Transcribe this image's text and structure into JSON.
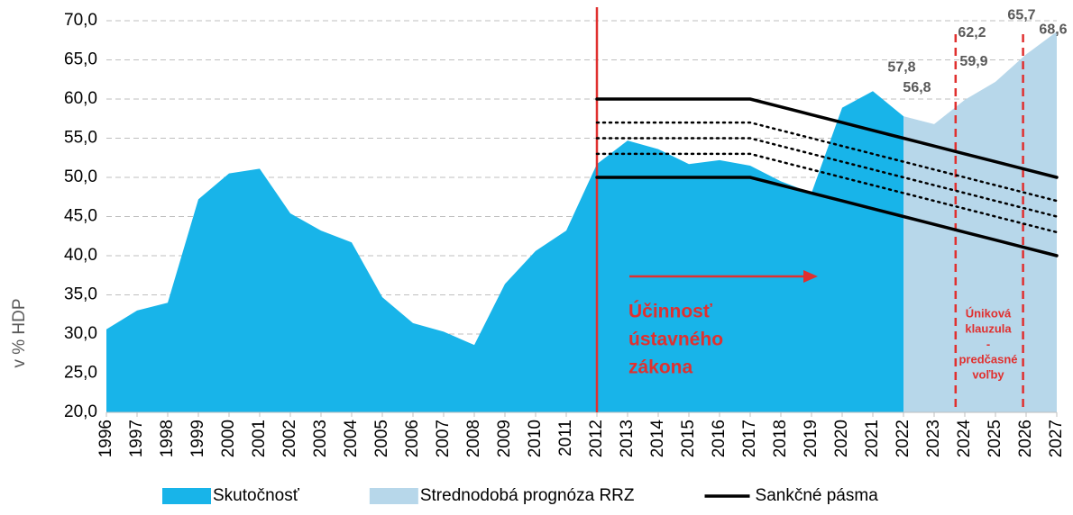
{
  "chart_data": {
    "type": "area",
    "y_label": "v % HDP",
    "x": [
      1996,
      1997,
      1998,
      1999,
      2000,
      2001,
      2002,
      2003,
      2004,
      2005,
      2006,
      2007,
      2008,
      2009,
      2010,
      2011,
      2012,
      2013,
      2014,
      2015,
      2016,
      2017,
      2018,
      2019,
      2020,
      2021,
      2022,
      2023,
      2024,
      2025,
      2026,
      2027
    ],
    "xlim": [
      1996,
      2027
    ],
    "xticks": [
      1996,
      1997,
      1998,
      1999,
      2000,
      2001,
      2002,
      2003,
      2004,
      2005,
      2006,
      2007,
      2008,
      2009,
      2010,
      2011,
      2012,
      2013,
      2014,
      2015,
      2016,
      2017,
      2018,
      2019,
      2020,
      2021,
      2022,
      2023,
      2024,
      2025,
      2026,
      2027
    ],
    "ylim": [
      20,
      70
    ],
    "yticks": [
      {
        "value": 20,
        "label": "20,0"
      },
      {
        "value": 25,
        "label": "25,0"
      },
      {
        "value": 30,
        "label": "30,0"
      },
      {
        "value": 35,
        "label": "35,0"
      },
      {
        "value": 40,
        "label": "40,0"
      },
      {
        "value": 45,
        "label": "45,0"
      },
      {
        "value": 50,
        "label": "50,0"
      },
      {
        "value": 55,
        "label": "55,0"
      },
      {
        "value": 60,
        "label": "60,0"
      },
      {
        "value": 65,
        "label": "65,0"
      },
      {
        "value": 70,
        "label": "70,0"
      }
    ],
    "grid": true,
    "legend": "bottom",
    "series": [
      {
        "name": "Skutočnosť",
        "kind": "area",
        "color": "#18b4e9",
        "values": [
          30.6,
          33.0,
          34.0,
          47.2,
          50.5,
          51.1,
          45.4,
          43.2,
          41.7,
          34.7,
          31.4,
          30.3,
          28.6,
          36.4,
          40.6,
          43.2,
          51.7,
          54.7,
          53.6,
          51.7,
          52.2,
          51.5,
          49.5,
          48.0,
          58.9,
          61.0,
          57.8,
          null,
          null,
          null,
          null,
          null
        ]
      },
      {
        "name": "Strednodobá prognóza RRZ",
        "kind": "area",
        "color": "#b7d7ea",
        "values": [
          null,
          null,
          null,
          null,
          null,
          null,
          null,
          null,
          null,
          null,
          null,
          null,
          null,
          null,
          null,
          null,
          null,
          null,
          null,
          null,
          null,
          null,
          null,
          null,
          null,
          null,
          57.8,
          56.8,
          59.9,
          62.2,
          65.7,
          68.6
        ],
        "value_labels": [
          null,
          null,
          null,
          null,
          null,
          null,
          null,
          null,
          null,
          null,
          null,
          null,
          null,
          null,
          null,
          null,
          null,
          null,
          null,
          null,
          null,
          null,
          null,
          null,
          null,
          null,
          "57,8",
          "56,8",
          "59,9",
          "62,2",
          "65,7",
          "68,6"
        ]
      },
      {
        "name": "Sankčné pásma",
        "kind": "line",
        "style": "solid",
        "color": "#000000",
        "values": [
          null,
          null,
          null,
          null,
          null,
          null,
          null,
          null,
          null,
          null,
          null,
          null,
          null,
          null,
          null,
          null,
          60,
          60,
          60,
          60,
          60,
          60,
          59,
          58,
          57,
          56,
          55,
          54,
          53,
          52,
          51,
          50
        ]
      },
      {
        "kind": "line",
        "style": "dotted",
        "color": "#000000",
        "values": [
          null,
          null,
          null,
          null,
          null,
          null,
          null,
          null,
          null,
          null,
          null,
          null,
          null,
          null,
          null,
          null,
          57,
          57,
          57,
          57,
          57,
          57,
          56,
          55,
          54,
          53,
          52,
          51,
          50,
          49,
          48,
          47
        ]
      },
      {
        "kind": "line",
        "style": "dotted",
        "color": "#000000",
        "values": [
          null,
          null,
          null,
          null,
          null,
          null,
          null,
          null,
          null,
          null,
          null,
          null,
          null,
          null,
          null,
          null,
          55,
          55,
          55,
          55,
          55,
          55,
          54,
          53,
          52,
          51,
          50,
          49,
          48,
          47,
          46,
          45
        ]
      },
      {
        "kind": "line",
        "style": "dotted",
        "color": "#000000",
        "values": [
          null,
          null,
          null,
          null,
          null,
          null,
          null,
          null,
          null,
          null,
          null,
          null,
          null,
          null,
          null,
          null,
          53,
          53,
          53,
          53,
          53,
          53,
          52,
          51,
          50,
          49,
          48,
          47,
          46,
          45,
          44,
          43
        ]
      },
      {
        "kind": "line",
        "style": "solid",
        "color": "#000000",
        "values": [
          null,
          null,
          null,
          null,
          null,
          null,
          null,
          null,
          null,
          null,
          null,
          null,
          null,
          null,
          null,
          null,
          50,
          50,
          50,
          50,
          50,
          50,
          49,
          48,
          47,
          46,
          45,
          44,
          43,
          42,
          41,
          40
        ]
      }
    ],
    "vlines": [
      {
        "x": 2012,
        "style": "solid",
        "color": "#e0302f"
      },
      {
        "x": 2023.7,
        "style": "dashed",
        "color": "#e0302f"
      },
      {
        "x": 2025.9,
        "style": "dashed",
        "color": "#e0302f"
      }
    ],
    "annotations": [
      {
        "lines": [
          "Účinnosť",
          "ústavného",
          "zákona"
        ],
        "color": "#e0302f"
      },
      {
        "lines": [
          "Úniková",
          "klauzula",
          "-",
          "predčasné",
          "voľby"
        ],
        "color": "#e0302f"
      }
    ]
  }
}
